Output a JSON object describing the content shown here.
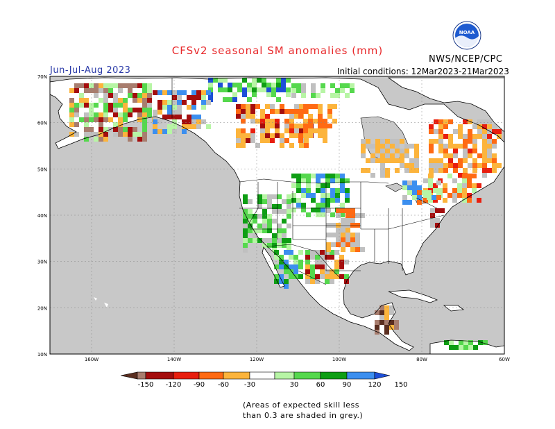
{
  "title": "CFSv2 seasonal SM anomalies (mm)",
  "season": "Jun-Jul-Aug 2023",
  "initial_conditions": "Initial conditions: 12Mar2023-21Mar2023",
  "organization": "NWS/NCEP/CPC",
  "logo_text": "NOAA",
  "lat_labels": [
    "70N",
    "60N",
    "50N",
    "40N",
    "30N",
    "20N",
    "10N"
  ],
  "lon_labels": [
    "160W",
    "140W",
    "120W",
    "100W",
    "80W",
    "60W"
  ],
  "colorbar": {
    "ticks": [
      "-150",
      "-120",
      "-90",
      "-60",
      "-30",
      "30",
      "60",
      "90",
      "120",
      "150"
    ],
    "colors": [
      "#5a2e20",
      "#a87d6e",
      "#a40d0d",
      "#e81e0e",
      "#ff6a13",
      "#fcb43c",
      "#ffffff",
      "#b7f5a5",
      "#55d84d",
      "#0e9e14",
      "#3c8fef",
      "#1d4fd8"
    ]
  },
  "note_line1": "(Areas of expected skill less",
  "note_line2": "than 0.3 are shaded in grey.)"
}
